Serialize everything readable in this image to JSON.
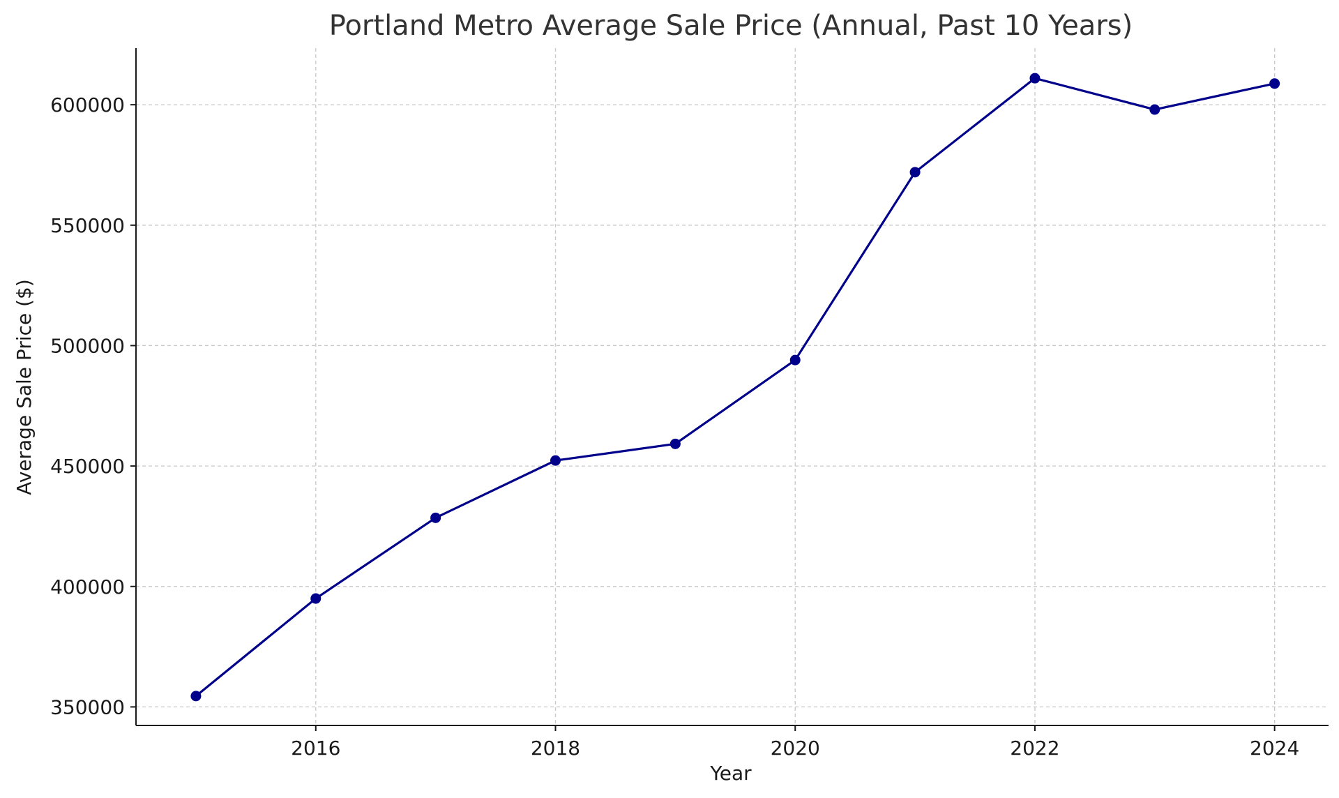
{
  "chart_data": {
    "type": "line",
    "title": "Portland Metro Average Sale Price (Annual, Past 10 Years)",
    "xlabel": "Year",
    "ylabel": "Average Sale Price ($)",
    "x": [
      2015,
      2016,
      2017,
      2018,
      2019,
      2020,
      2021,
      2022,
      2023,
      2024
    ],
    "series": [
      {
        "values": [
          354500,
          395000,
          428500,
          452300,
          459200,
          494000,
          572000,
          611000,
          598000,
          608800
        ],
        "color": "#00008b",
        "marker": "circle"
      }
    ],
    "xlim": [
      2014.5,
      2024.45
    ],
    "ylim": [
      342300,
      623500
    ],
    "xticks": [
      2016,
      2018,
      2020,
      2022,
      2024
    ],
    "yticks": [
      350000,
      400000,
      450000,
      500000,
      550000,
      600000
    ],
    "grid": true,
    "legend": "none"
  }
}
